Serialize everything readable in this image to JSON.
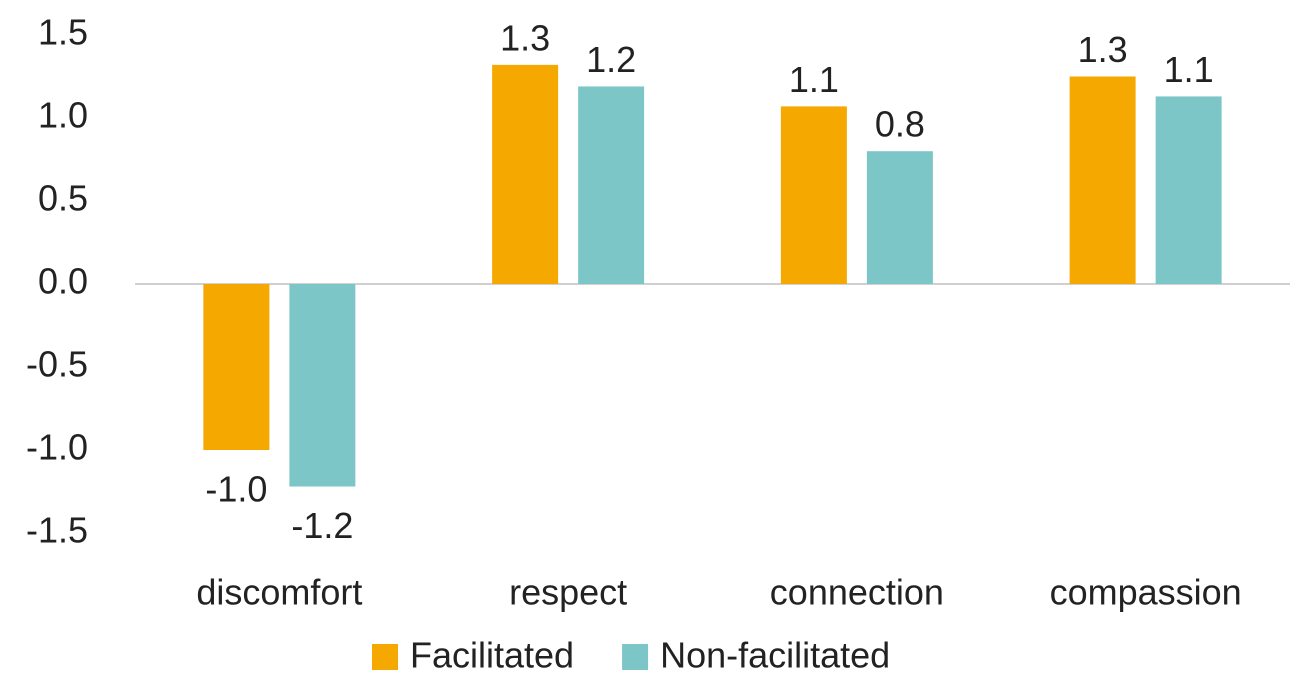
{
  "chart_data": {
    "type": "bar",
    "categories": [
      "discomfort",
      "respect",
      "connection",
      "compassion"
    ],
    "series": [
      {
        "name": "Facilitated",
        "color": "#f5a800",
        "values": [
          -1.0,
          1.32,
          1.07,
          1.25
        ],
        "value_labels": [
          "-1.0",
          "1.3",
          "1.1",
          "1.3"
        ]
      },
      {
        "name": "Non-facilitated",
        "color": "#7cc6c8",
        "values": [
          -1.22,
          1.19,
          0.8,
          1.13
        ],
        "value_labels": [
          "-1.2",
          "1.2",
          "0.8",
          "1.1"
        ]
      }
    ],
    "ylim": [
      -1.5,
      1.5
    ],
    "yticks": [
      -1.5,
      {
        "value": -1.0,
        "label": "-1.0"
      },
      -0.5,
      {
        "value": 0.0,
        "label": "0.0"
      },
      0.5,
      {
        "value": 1.0,
        "label": "1.0"
      },
      1.5
    ],
    "grid": false,
    "legend": "bottom"
  }
}
